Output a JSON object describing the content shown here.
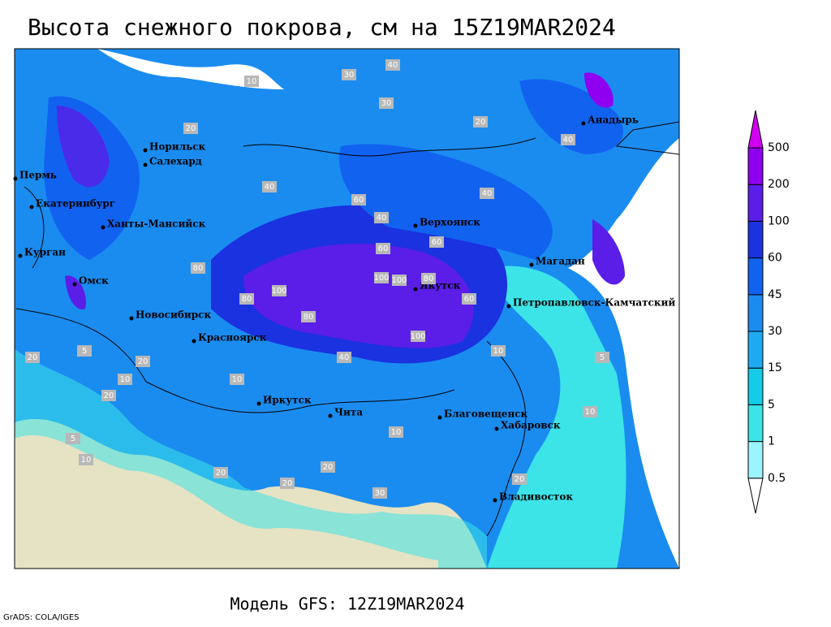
{
  "title": "Высота снежного покрова, см на 15Z19MAR2024",
  "footer": "Модель GFS: 12Z19MAR2024",
  "credit": "GrADS: COLA/IGES",
  "legend": {
    "levels": [
      0.5,
      1,
      5,
      15,
      30,
      45,
      60,
      100,
      200,
      500
    ],
    "colors": [
      "#ffffff",
      "#9cf4ff",
      "#3ce4e8",
      "#14cce8",
      "#1eaaf2",
      "#1a8cf0",
      "#1262f0",
      "#1a32e0",
      "#5a1ee8",
      "#9000f0",
      "#d200f0"
    ]
  },
  "cities": [
    "Анадырь",
    "Норильск",
    "Салехард",
    "Пермь",
    "Екатеринбург",
    "Ханты-Мансийск",
    "Курган",
    "Омск",
    "Новосибирск",
    "Красноярск",
    "Иркутск",
    "Чита",
    "Верхоянск",
    "Якутск",
    "Магадан",
    "Петропавловск-Камчатский",
    "Благовещенск",
    "Хабаровск",
    "Владивосток"
  ],
  "contour_labels": [
    40,
    30,
    10,
    20,
    30,
    40,
    20,
    60,
    40,
    80,
    60,
    40,
    100,
    80,
    60,
    100,
    80,
    60,
    100,
    80,
    100,
    40,
    20,
    10,
    20,
    10,
    5,
    20,
    10,
    20,
    30,
    20,
    10,
    20,
    5,
    10,
    40,
    20,
    10,
    5
  ]
}
